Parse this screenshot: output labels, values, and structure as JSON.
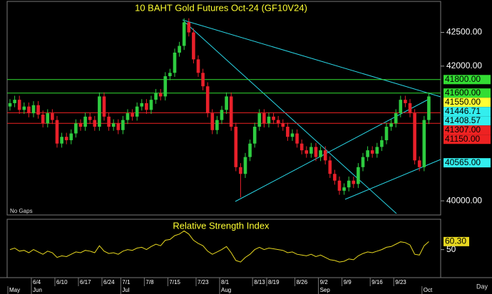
{
  "chart_data": [
    {
      "type": "candlestick",
      "title": "10 BAHT Gold Futures Oct-24 (GF10V24)",
      "note": "No Gaps",
      "x_unit": "Day",
      "up_color": "#2ecc40",
      "down_color": "#e8202a",
      "categories": [
        null,
        null,
        null,
        null,
        null,
        "6/4",
        null,
        null,
        null,
        null,
        "6/10",
        null,
        null,
        null,
        null,
        "6/17",
        null,
        null,
        null,
        null,
        "6/24",
        null,
        null,
        null,
        "7/1",
        null,
        null,
        null,
        null,
        "7/8",
        null,
        null,
        null,
        null,
        "7/15",
        null,
        null,
        null,
        null,
        null,
        "7/23",
        null,
        null,
        null,
        null,
        "8/1",
        null,
        null,
        null,
        null,
        null,
        null,
        "8/13",
        null,
        null,
        "8/19",
        null,
        null,
        null,
        null,
        null,
        "8/26",
        null,
        null,
        null,
        null,
        "9/2",
        null,
        null,
        null,
        null,
        "9/9",
        null,
        null,
        null,
        null,
        null,
        "9/16",
        null,
        null,
        null,
        null,
        "9/23",
        null,
        null,
        null,
        null,
        null,
        null,
        null
      ],
      "months": [
        "May",
        null,
        null,
        null,
        null,
        "Jun",
        null,
        null,
        null,
        null,
        null,
        null,
        null,
        null,
        null,
        null,
        null,
        null,
        null,
        null,
        null,
        null,
        null,
        null,
        "Jul",
        null,
        null,
        null,
        null,
        null,
        null,
        null,
        null,
        null,
        null,
        null,
        null,
        null,
        null,
        null,
        null,
        null,
        null,
        null,
        null,
        "Aug",
        null,
        null,
        null,
        null,
        null,
        null,
        null,
        null,
        null,
        null,
        null,
        null,
        null,
        null,
        null,
        null,
        null,
        null,
        null,
        null,
        "Sep",
        null,
        null,
        null,
        null,
        null,
        null,
        null,
        null,
        null,
        null,
        null,
        null,
        null,
        null,
        null,
        null,
        null,
        null,
        null,
        null,
        null,
        "Oct",
        null
      ],
      "open": [
        41400,
        41450,
        41500,
        41350,
        41400,
        41300,
        41420,
        41280,
        41150,
        41300,
        41200,
        40850,
        40950,
        40900,
        41000,
        41150,
        41100,
        41250,
        41200,
        41100,
        41550,
        41250,
        41100,
        41150,
        41050,
        41200,
        41300,
        41250,
        41400,
        41450,
        41350,
        41500,
        41600,
        41550,
        41850,
        41900,
        42200,
        42300,
        42650,
        42500,
        42100,
        41900,
        41700,
        41300,
        41050,
        41200,
        41350,
        41550,
        41100,
        40500,
        40400,
        40650,
        40850,
        41100,
        41300,
        41150,
        41250,
        41200,
        41150,
        41100,
        40950,
        41000,
        40850,
        40750,
        40700,
        40800,
        40650,
        40750,
        40600,
        40400,
        40300,
        40150,
        40200,
        40300,
        40250,
        40500,
        40650,
        40750,
        40700,
        40800,
        40900,
        41100,
        41150,
        41300,
        41500,
        41450,
        41300,
        40600,
        40500,
        41200
      ],
      "high": [
        41510,
        41560,
        41560,
        41460,
        41460,
        41480,
        41480,
        41340,
        41360,
        41360,
        41260,
        41010,
        41010,
        41060,
        41210,
        41210,
        41310,
        41310,
        41260,
        41610,
        41610,
        41310,
        41210,
        41210,
        41260,
        41360,
        41360,
        41460,
        41510,
        41510,
        41560,
        41660,
        41660,
        41910,
        41960,
        42260,
        42360,
        42710,
        42710,
        42560,
        42160,
        41960,
        41760,
        41360,
        41260,
        41410,
        41610,
        41610,
        41160,
        40560,
        40710,
        40910,
        41160,
        41360,
        41360,
        41310,
        41310,
        41260,
        41210,
        41160,
        41060,
        41060,
        40910,
        40810,
        40860,
        40860,
        40810,
        40810,
        40660,
        40460,
        40360,
        40260,
        40360,
        40360,
        40560,
        40710,
        40810,
        40810,
        40860,
        40960,
        41160,
        41210,
        41360,
        41560,
        41560,
        41510,
        41360,
        40660,
        41260,
        41610
      ],
      "low": [
        41340,
        41390,
        41290,
        41290,
        41240,
        41240,
        41220,
        41090,
        41090,
        41140,
        40790,
        40790,
        40840,
        40840,
        40940,
        41040,
        41040,
        41140,
        41040,
        41040,
        41190,
        41040,
        41040,
        40990,
        40990,
        41140,
        41190,
        41190,
        41340,
        41290,
        41290,
        41440,
        41490,
        41490,
        41790,
        41840,
        42140,
        42240,
        42440,
        42040,
        41840,
        41640,
        41240,
        40990,
        40990,
        41140,
        41290,
        41040,
        40440,
        40050,
        40340,
        40590,
        40790,
        41040,
        41090,
        41090,
        41140,
        41090,
        41040,
        40890,
        40890,
        40790,
        40690,
        40640,
        40640,
        40590,
        40590,
        40540,
        40340,
        40240,
        40090,
        40090,
        40140,
        40190,
        40190,
        40440,
        40590,
        40640,
        40640,
        40740,
        40840,
        41040,
        41090,
        41240,
        41390,
        41240,
        40540,
        40440,
        40440,
        41140
      ],
      "close": [
        41450,
        41500,
        41350,
        41400,
        41300,
        41420,
        41280,
        41150,
        41300,
        41200,
        40850,
        40950,
        40900,
        41000,
        41150,
        41100,
        41250,
        41200,
        41100,
        41550,
        41250,
        41100,
        41150,
        41050,
        41200,
        41300,
        41250,
        41400,
        41450,
        41350,
        41500,
        41600,
        41550,
        41850,
        41900,
        42200,
        42300,
        42650,
        42500,
        42100,
        41900,
        41700,
        41300,
        41050,
        41200,
        41350,
        41550,
        41100,
        40500,
        40400,
        40650,
        40850,
        41100,
        41300,
        41150,
        41250,
        41200,
        41150,
        41100,
        40950,
        41000,
        40850,
        40750,
        40700,
        40800,
        40650,
        40750,
        40600,
        40400,
        40300,
        40150,
        40200,
        40300,
        40250,
        40500,
        40650,
        40750,
        40700,
        40800,
        40900,
        41100,
        41150,
        41300,
        41500,
        41450,
        41300,
        40600,
        40500,
        41200,
        41550
      ],
      "levels": [
        {
          "value": 41800,
          "label": "41800.00",
          "color": "#33dd33",
          "line": true
        },
        {
          "value": 41600,
          "label": "41600.00",
          "color": "#33dd33",
          "line": true
        },
        {
          "value": 41550,
          "label": "41550.00",
          "color": "#ffff33",
          "line": false
        },
        {
          "value": 41446.71,
          "label": "41446.71",
          "color": "#33eeee",
          "line": false
        },
        {
          "value": 41408.57,
          "label": "41408.57",
          "color": "#33eeee",
          "line": false
        },
        {
          "value": 41307,
          "label": "41307.00",
          "color": "#ee2222",
          "line": true
        },
        {
          "value": 41150,
          "label": "41150.00",
          "color": "#ee2222",
          "line": true
        },
        {
          "value": 40565,
          "label": "40565.00",
          "color": "#33eeee",
          "line": false
        }
      ],
      "ylim": [
        39790,
        42960
      ],
      "yticks": [
        {
          "value": 42500,
          "label": "42500.00"
        },
        {
          "value": 42000,
          "label": "42000.00"
        },
        {
          "value": 40000,
          "label": "40000.00"
        }
      ]
    },
    {
      "type": "line",
      "title": "Relative Strength Index",
      "color": "#e8d820",
      "values": [
        50,
        52,
        48,
        49,
        46,
        50,
        47,
        44,
        48,
        46,
        40,
        42,
        41,
        44,
        47,
        46,
        49,
        48,
        46,
        55,
        48,
        45,
        46,
        44,
        48,
        50,
        49,
        52,
        53,
        50,
        54,
        57,
        55,
        62,
        63,
        68,
        70,
        74,
        70,
        62,
        58,
        55,
        48,
        44,
        47,
        50,
        54,
        46,
        36,
        34,
        40,
        44,
        50,
        53,
        50,
        52,
        51,
        50,
        49,
        46,
        47,
        44,
        43,
        42,
        44,
        41,
        43,
        40,
        37,
        36,
        34,
        35,
        38,
        37,
        42,
        45,
        47,
        46,
        48,
        50,
        53,
        54,
        57,
        60,
        59,
        56,
        44,
        43,
        55,
        60.3
      ],
      "last": {
        "value": 60.3,
        "label": "60.30"
      },
      "ylim": [
        14,
        89
      ],
      "yticks": [
        50
      ]
    }
  ]
}
